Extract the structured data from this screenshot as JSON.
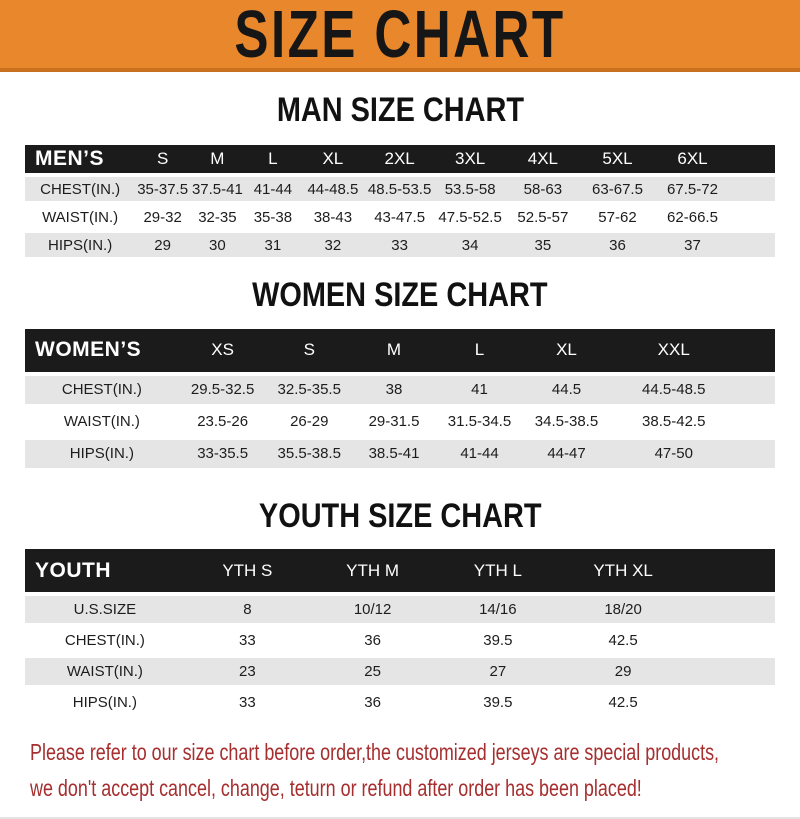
{
  "banner": {
    "title": "SIZE CHART"
  },
  "men": {
    "heading": "MAN SIZE CHART",
    "header_label": "MEN’S",
    "sizes": [
      "S",
      "M",
      "L",
      "XL",
      "2XL",
      "3XL",
      "4XL",
      "5XL",
      "6XL"
    ],
    "rows": [
      {
        "label": "CHEST(IN.)",
        "values": [
          "35-37.5",
          "37.5-41",
          "41-44",
          "44-48.5",
          "48.5-53.5",
          "53.5-58",
          "58-63",
          "63-67.5",
          "67.5-72"
        ]
      },
      {
        "label": "WAIST(IN.)",
        "values": [
          "29-32",
          "32-35",
          "35-38",
          "38-43",
          "43-47.5",
          "47.5-52.5",
          "52.5-57",
          "57-62",
          "62-66.5"
        ]
      },
      {
        "label": "HIPS(IN.)",
        "values": [
          "29",
          "30",
          "31",
          "32",
          "33",
          "34",
          "35",
          "36",
          "37"
        ]
      }
    ]
  },
  "women": {
    "heading": "WOMEN SIZE CHART",
    "header_label": "WOMEN’S",
    "sizes": [
      "XS",
      "S",
      "M",
      "L",
      "XL",
      "XXL"
    ],
    "rows": [
      {
        "label": "CHEST(IN.)",
        "values": [
          "29.5-32.5",
          "32.5-35.5",
          "38",
          "41",
          "44.5",
          "44.5-48.5"
        ]
      },
      {
        "label": "WAIST(IN.)",
        "values": [
          "23.5-26",
          "26-29",
          "29-31.5",
          "31.5-34.5",
          "34.5-38.5",
          "38.5-42.5"
        ]
      },
      {
        "label": "HIPS(IN.)",
        "values": [
          "33-35.5",
          "35.5-38.5",
          "38.5-41",
          "41-44",
          "44-47",
          "47-50"
        ]
      }
    ]
  },
  "youth": {
    "heading": "YOUTH SIZE CHART",
    "header_label": "YOUTH",
    "sizes": [
      "YTH S",
      "YTH M",
      "YTH L",
      "YTH XL"
    ],
    "rows": [
      {
        "label": "U.S.SIZE",
        "values": [
          "8",
          "10/12",
          "14/16",
          "18/20"
        ]
      },
      {
        "label": "CHEST(IN.)",
        "values": [
          "33",
          "36",
          "39.5",
          "42.5"
        ]
      },
      {
        "label": "WAIST(IN.)",
        "values": [
          "23",
          "25",
          "27",
          "29"
        ]
      },
      {
        "label": "HIPS(IN.)",
        "values": [
          "33",
          "36",
          "39.5",
          "42.5"
        ]
      }
    ]
  },
  "disclaimer": {
    "line1": "Please refer to our size chart before order,the customized jerseys are special products,",
    "line2": "we don't accept cancel, change, teturn or refund after order has been placed!"
  },
  "colors": {
    "banner_bg": "#E8872B",
    "banner_edge": "#C9711F",
    "header_bg": "#1B1B1B",
    "row_alt_bg": "#E5E5E5",
    "disclaimer_text": "#A62E2E",
    "body_text": "#1D1D1D"
  }
}
